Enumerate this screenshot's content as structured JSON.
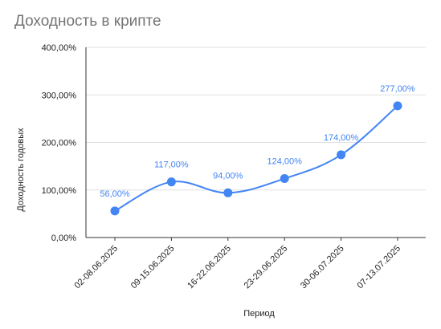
{
  "chart_data": {
    "type": "line",
    "title": "Доходность в крипте",
    "xlabel": "Период",
    "ylabel": "Доходность годовых",
    "categories": [
      "02-08.06.2025",
      "09-15.06.2025",
      "16-22.06.2025",
      "23-29.06.2025",
      "30-06.07.2025",
      "07-13.07.2025"
    ],
    "series": [
      {
        "values": [
          56,
          117,
          94,
          124,
          174,
          277
        ],
        "labels": [
          "56,00%",
          "117,00%",
          "94,00%",
          "124,00%",
          "174,00%",
          "277,00%"
        ]
      }
    ],
    "ylim": [
      0,
      400
    ],
    "yticks": [
      0,
      100,
      200,
      300,
      400
    ],
    "ytick_labels": [
      "0,00%",
      "100,00%",
      "200,00%",
      "300,00%",
      "400,00%"
    ],
    "grid": true,
    "legend": "none",
    "colors": {
      "series": "#4285f4",
      "title": "#757575",
      "grid": "#e0e0e0",
      "axis": "#333333"
    }
  }
}
